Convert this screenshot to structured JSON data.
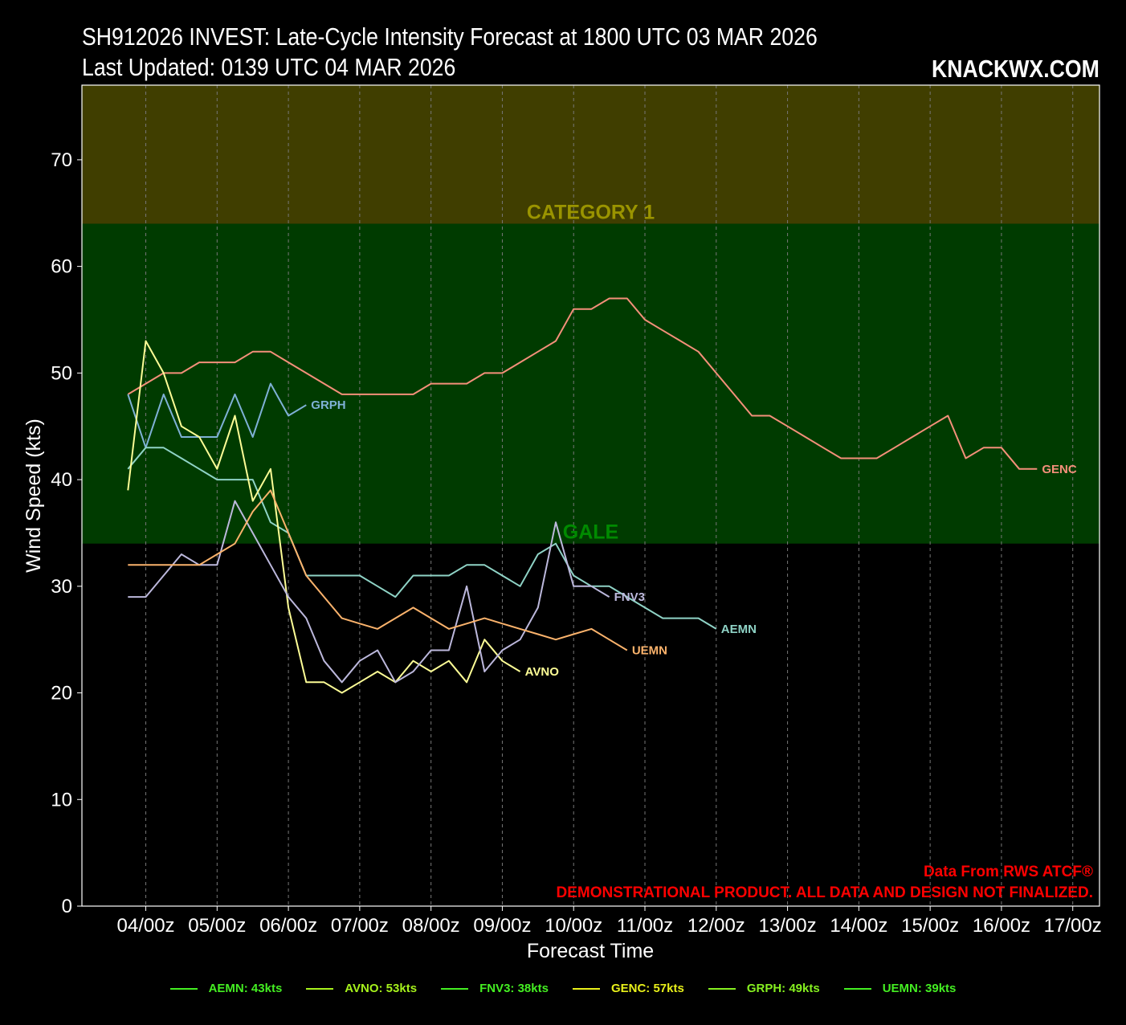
{
  "header": {
    "title_line1": "SH912026 INVEST: Late-Cycle Intensity Forecast at 1800 UTC 03 MAR 2026",
    "title_line2": "Last Updated: 0139 UTC 04 MAR 2026",
    "brand": "KNACKWX.COM"
  },
  "notices": {
    "source": "Data From RWS ATCF®",
    "disclaimer": "DEMONSTRATIONAL PRODUCT. ALL DATA AND DESIGN NOT FINALIZED."
  },
  "colors": {
    "background": "#000000",
    "category1_zone": "#403e00",
    "gale_zone": "#003b00",
    "category1_label": "#9a9400",
    "gale_label": "#008a00",
    "grid": "#777777",
    "legend_text": "#7CFC00",
    "notice_text": "#ff0000"
  },
  "legend": [
    {
      "label": "AEMN: 43kts",
      "color": "#44ee22"
    },
    {
      "label": "AVNO: 53kts",
      "color": "#a6f21c"
    },
    {
      "label": "FNV3: 38kts",
      "color": "#44ee22"
    },
    {
      "label": "GENC: 57kts",
      "color": "#e8f01a"
    },
    {
      "label": "GRPH: 49kts",
      "color": "#86f020"
    },
    {
      "label": "UEMN: 39kts",
      "color": "#44ee22"
    }
  ],
  "chart_data": {
    "type": "line",
    "xlabel": "Forecast Time",
    "ylabel": "Wind Speed (kts)",
    "x_unit": "hours after 1800 UTC 03 MAR 2026",
    "x_ticks": [
      {
        "t": 6,
        "label": "04/00z"
      },
      {
        "t": 30,
        "label": "05/00z"
      },
      {
        "t": 54,
        "label": "06/00z"
      },
      {
        "t": 78,
        "label": "07/00z"
      },
      {
        "t": 102,
        "label": "08/00z"
      },
      {
        "t": 126,
        "label": "09/00z"
      },
      {
        "t": 150,
        "label": "10/00z"
      },
      {
        "t": 174,
        "label": "11/00z"
      },
      {
        "t": 198,
        "label": "12/00z"
      },
      {
        "t": 222,
        "label": "13/00z"
      },
      {
        "t": 246,
        "label": "14/00z"
      },
      {
        "t": 270,
        "label": "15/00z"
      },
      {
        "t": 294,
        "label": "16/00z"
      },
      {
        "t": 318,
        "label": "17/00z"
      }
    ],
    "xlim": [
      -15.5,
      327
    ],
    "ylim": [
      0,
      77
    ],
    "y_ticks": [
      0,
      10,
      20,
      30,
      40,
      50,
      60,
      70
    ],
    "grid": "x-dashed",
    "zones": [
      {
        "label": "CATEGORY 1",
        "from": 64,
        "to": 77
      },
      {
        "label": "GALE",
        "from": 34,
        "to": 64
      }
    ],
    "series": [
      {
        "name": "GENC",
        "color": "#f4907a",
        "points": [
          [
            0,
            48
          ],
          [
            6,
            49
          ],
          [
            12,
            50
          ],
          [
            18,
            50
          ],
          [
            24,
            51
          ],
          [
            30,
            51
          ],
          [
            36,
            51
          ],
          [
            42,
            52
          ],
          [
            48,
            52
          ],
          [
            54,
            51
          ],
          [
            60,
            50
          ],
          [
            66,
            49
          ],
          [
            72,
            48
          ],
          [
            78,
            48
          ],
          [
            84,
            48
          ],
          [
            90,
            48
          ],
          [
            96,
            48
          ],
          [
            102,
            49
          ],
          [
            108,
            49
          ],
          [
            114,
            49
          ],
          [
            120,
            50
          ],
          [
            126,
            50
          ],
          [
            132,
            51
          ],
          [
            138,
            52
          ],
          [
            144,
            53
          ],
          [
            150,
            56
          ],
          [
            156,
            56
          ],
          [
            162,
            57
          ],
          [
            168,
            57
          ],
          [
            174,
            55
          ],
          [
            180,
            54
          ],
          [
            186,
            53
          ],
          [
            192,
            52
          ],
          [
            198,
            50
          ],
          [
            204,
            48
          ],
          [
            210,
            46
          ],
          [
            216,
            46
          ],
          [
            222,
            45
          ],
          [
            228,
            44
          ],
          [
            234,
            43
          ],
          [
            240,
            42
          ],
          [
            246,
            42
          ],
          [
            252,
            42
          ],
          [
            258,
            43
          ],
          [
            264,
            44
          ],
          [
            270,
            45
          ],
          [
            276,
            46
          ],
          [
            282,
            42
          ],
          [
            288,
            43
          ],
          [
            294,
            43
          ],
          [
            300,
            41
          ],
          [
            306,
            41
          ]
        ]
      },
      {
        "name": "GRPH",
        "color": "#7fb1d6",
        "points": [
          [
            0,
            48
          ],
          [
            6,
            43
          ],
          [
            12,
            48
          ],
          [
            18,
            44
          ],
          [
            24,
            44
          ],
          [
            30,
            44
          ],
          [
            36,
            48
          ],
          [
            42,
            44
          ],
          [
            48,
            49
          ],
          [
            54,
            46
          ],
          [
            60,
            47
          ]
        ]
      },
      {
        "name": "AEMN",
        "color": "#8fd3c6",
        "points": [
          [
            0,
            41
          ],
          [
            6,
            43
          ],
          [
            12,
            43
          ],
          [
            18,
            42
          ],
          [
            24,
            41
          ],
          [
            30,
            40
          ],
          [
            36,
            40
          ],
          [
            42,
            40
          ],
          [
            48,
            36
          ],
          [
            54,
            35
          ],
          [
            60,
            31
          ],
          [
            66,
            31
          ],
          [
            72,
            31
          ],
          [
            78,
            31
          ],
          [
            84,
            30
          ],
          [
            90,
            29
          ],
          [
            96,
            31
          ],
          [
            102,
            31
          ],
          [
            108,
            31
          ],
          [
            114,
            32
          ],
          [
            120,
            32
          ],
          [
            126,
            31
          ],
          [
            132,
            30
          ],
          [
            138,
            33
          ],
          [
            144,
            34
          ],
          [
            150,
            31
          ],
          [
            156,
            30
          ],
          [
            162,
            30
          ],
          [
            168,
            29
          ],
          [
            174,
            28
          ],
          [
            180,
            27
          ],
          [
            186,
            27
          ],
          [
            192,
            27
          ],
          [
            198,
            26
          ]
        ]
      },
      {
        "name": "AVNO",
        "color": "#fdfd96",
        "points": [
          [
            0,
            39
          ],
          [
            6,
            53
          ],
          [
            12,
            50
          ],
          [
            18,
            45
          ],
          [
            24,
            44
          ],
          [
            30,
            41
          ],
          [
            36,
            46
          ],
          [
            42,
            38
          ],
          [
            48,
            41
          ],
          [
            54,
            28
          ],
          [
            60,
            21
          ],
          [
            66,
            21
          ],
          [
            72,
            20
          ],
          [
            78,
            21
          ],
          [
            84,
            22
          ],
          [
            90,
            21
          ],
          [
            96,
            23
          ],
          [
            102,
            22
          ],
          [
            108,
            23
          ],
          [
            114,
            21
          ],
          [
            120,
            25
          ],
          [
            126,
            23
          ],
          [
            132,
            22
          ]
        ]
      },
      {
        "name": "FNV3",
        "color": "#bcb8dc",
        "points": [
          [
            0,
            29
          ],
          [
            6,
            29
          ],
          [
            12,
            31
          ],
          [
            18,
            33
          ],
          [
            24,
            32
          ],
          [
            30,
            32
          ],
          [
            36,
            38
          ],
          [
            42,
            35
          ],
          [
            48,
            32
          ],
          [
            54,
            29
          ],
          [
            60,
            27
          ],
          [
            66,
            23
          ],
          [
            72,
            21
          ],
          [
            78,
            23
          ],
          [
            84,
            24
          ],
          [
            90,
            21
          ],
          [
            96,
            22
          ],
          [
            102,
            24
          ],
          [
            108,
            24
          ],
          [
            114,
            30
          ],
          [
            120,
            22
          ],
          [
            126,
            24
          ],
          [
            132,
            25
          ],
          [
            138,
            28
          ],
          [
            144,
            36
          ],
          [
            150,
            30
          ],
          [
            156,
            30
          ],
          [
            162,
            29
          ]
        ]
      },
      {
        "name": "UEMN",
        "color": "#fbb36c",
        "points": [
          [
            0,
            32
          ],
          [
            6,
            32
          ],
          [
            12,
            32
          ],
          [
            18,
            32
          ],
          [
            24,
            32
          ],
          [
            30,
            33
          ],
          [
            36,
            34
          ],
          [
            42,
            37
          ],
          [
            48,
            39
          ],
          [
            54,
            35
          ],
          [
            60,
            31
          ],
          [
            66,
            29
          ],
          [
            72,
            27
          ],
          [
            78,
            26.5
          ],
          [
            84,
            26
          ],
          [
            90,
            27
          ],
          [
            96,
            28
          ],
          [
            102,
            27
          ],
          [
            108,
            26
          ],
          [
            114,
            26.5
          ],
          [
            120,
            27
          ],
          [
            126,
            26.5
          ],
          [
            132,
            26
          ],
          [
            138,
            25.5
          ],
          [
            144,
            25
          ],
          [
            150,
            25.5
          ],
          [
            156,
            26
          ],
          [
            162,
            25
          ],
          [
            168,
            24
          ]
        ]
      }
    ]
  }
}
